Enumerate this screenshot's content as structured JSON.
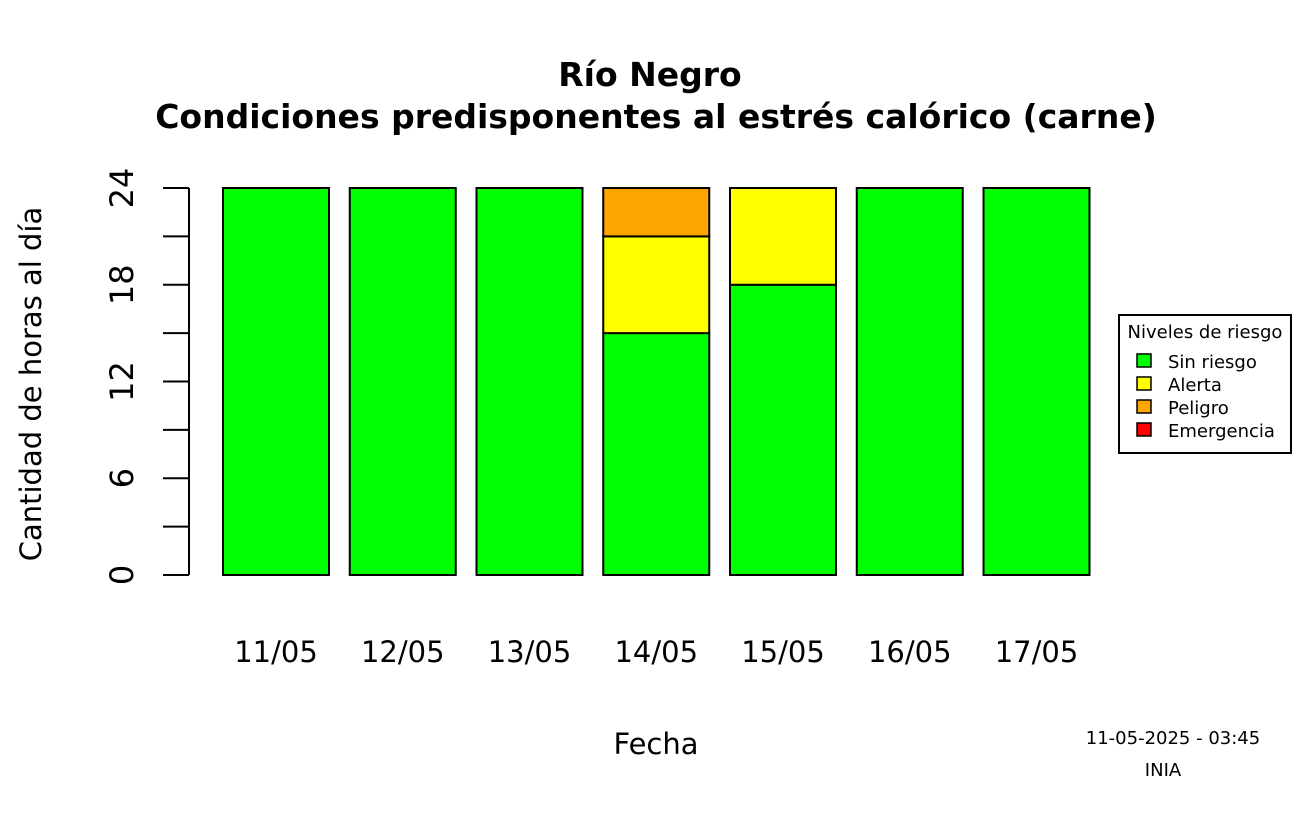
{
  "chart_data": {
    "type": "bar",
    "stacked": true,
    "title": "Río Negro",
    "subtitle": "Condiciones predisponentes al estrés calórico (carne)",
    "xlabel": "Fecha",
    "ylabel": "Cantidad de horas al día",
    "categories": [
      "11/05",
      "12/05",
      "13/05",
      "14/05",
      "15/05",
      "16/05",
      "17/05"
    ],
    "ylim": [
      0,
      24
    ],
    "yticks": [
      0,
      6,
      12,
      18,
      24
    ],
    "ytick_labels": [
      "0",
      "6",
      "12",
      "18",
      "24"
    ],
    "yminor_ticks": [
      3,
      9,
      15,
      21
    ],
    "series": [
      {
        "name": "Sin riesgo",
        "color": "#00ff00",
        "values": [
          24,
          24,
          24,
          15,
          18,
          24,
          24
        ]
      },
      {
        "name": "Alerta",
        "color": "#ffff00",
        "values": [
          0,
          0,
          0,
          6,
          6,
          0,
          0
        ]
      },
      {
        "name": "Peligro",
        "color": "#ffa500",
        "values": [
          0,
          0,
          0,
          3,
          0,
          0,
          0
        ]
      },
      {
        "name": "Emergencia",
        "color": "#ff0000",
        "values": [
          0,
          0,
          0,
          0,
          0,
          0,
          0
        ]
      }
    ],
    "grid": false,
    "legend": {
      "title": "Niveles de riesgo",
      "placement": "right"
    }
  },
  "footer": {
    "timestamp": "11-05-2025 - 03:45",
    "source": "INIA"
  }
}
